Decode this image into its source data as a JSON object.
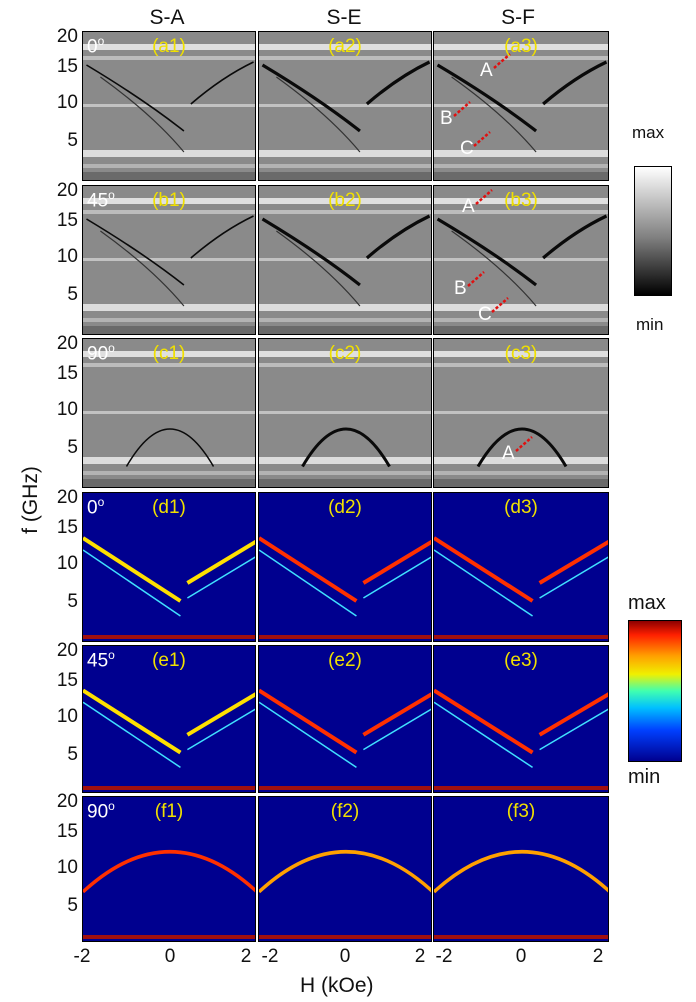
{
  "columns": [
    "S-A",
    "S-E",
    "S-F"
  ],
  "y_axis": {
    "label": "f (GHz)",
    "ticks": [
      "20",
      "15",
      "10",
      "5"
    ]
  },
  "x_axis": {
    "label": "H (kOe)",
    "ticks": [
      "-2",
      "0",
      "2"
    ]
  },
  "rows": [
    {
      "angle": "0",
      "style": "gray",
      "panels": [
        "(a1)",
        "(a2)",
        "(a3)"
      ]
    },
    {
      "angle": "45",
      "style": "gray",
      "panels": [
        "(b1)",
        "(b2)",
        "(b3)"
      ]
    },
    {
      "angle": "90",
      "style": "gray",
      "panels": [
        "(c1)",
        "(c2)",
        "(c3)"
      ]
    },
    {
      "angle": "0",
      "style": "jet",
      "panels": [
        "(d1)",
        "(d2)",
        "(d3)"
      ]
    },
    {
      "angle": "45",
      "style": "jet",
      "panels": [
        "(e1)",
        "(e2)",
        "(e3)"
      ]
    },
    {
      "angle": "90",
      "style": "jet",
      "panels": [
        "(f1)",
        "(f2)",
        "(f3)"
      ]
    }
  ],
  "annotations": {
    "a3": [
      "A",
      "B",
      "C"
    ],
    "b3": [
      "A",
      "B",
      "C"
    ],
    "c3": [
      "A"
    ]
  },
  "colorbars": {
    "gray": {
      "max": "max",
      "min": "min"
    },
    "jet": {
      "max": "max",
      "min": "min"
    }
  },
  "colors": {
    "panel_label": "#f0e000",
    "arrow": "#e01010",
    "jet_bg": "#00008f"
  }
}
